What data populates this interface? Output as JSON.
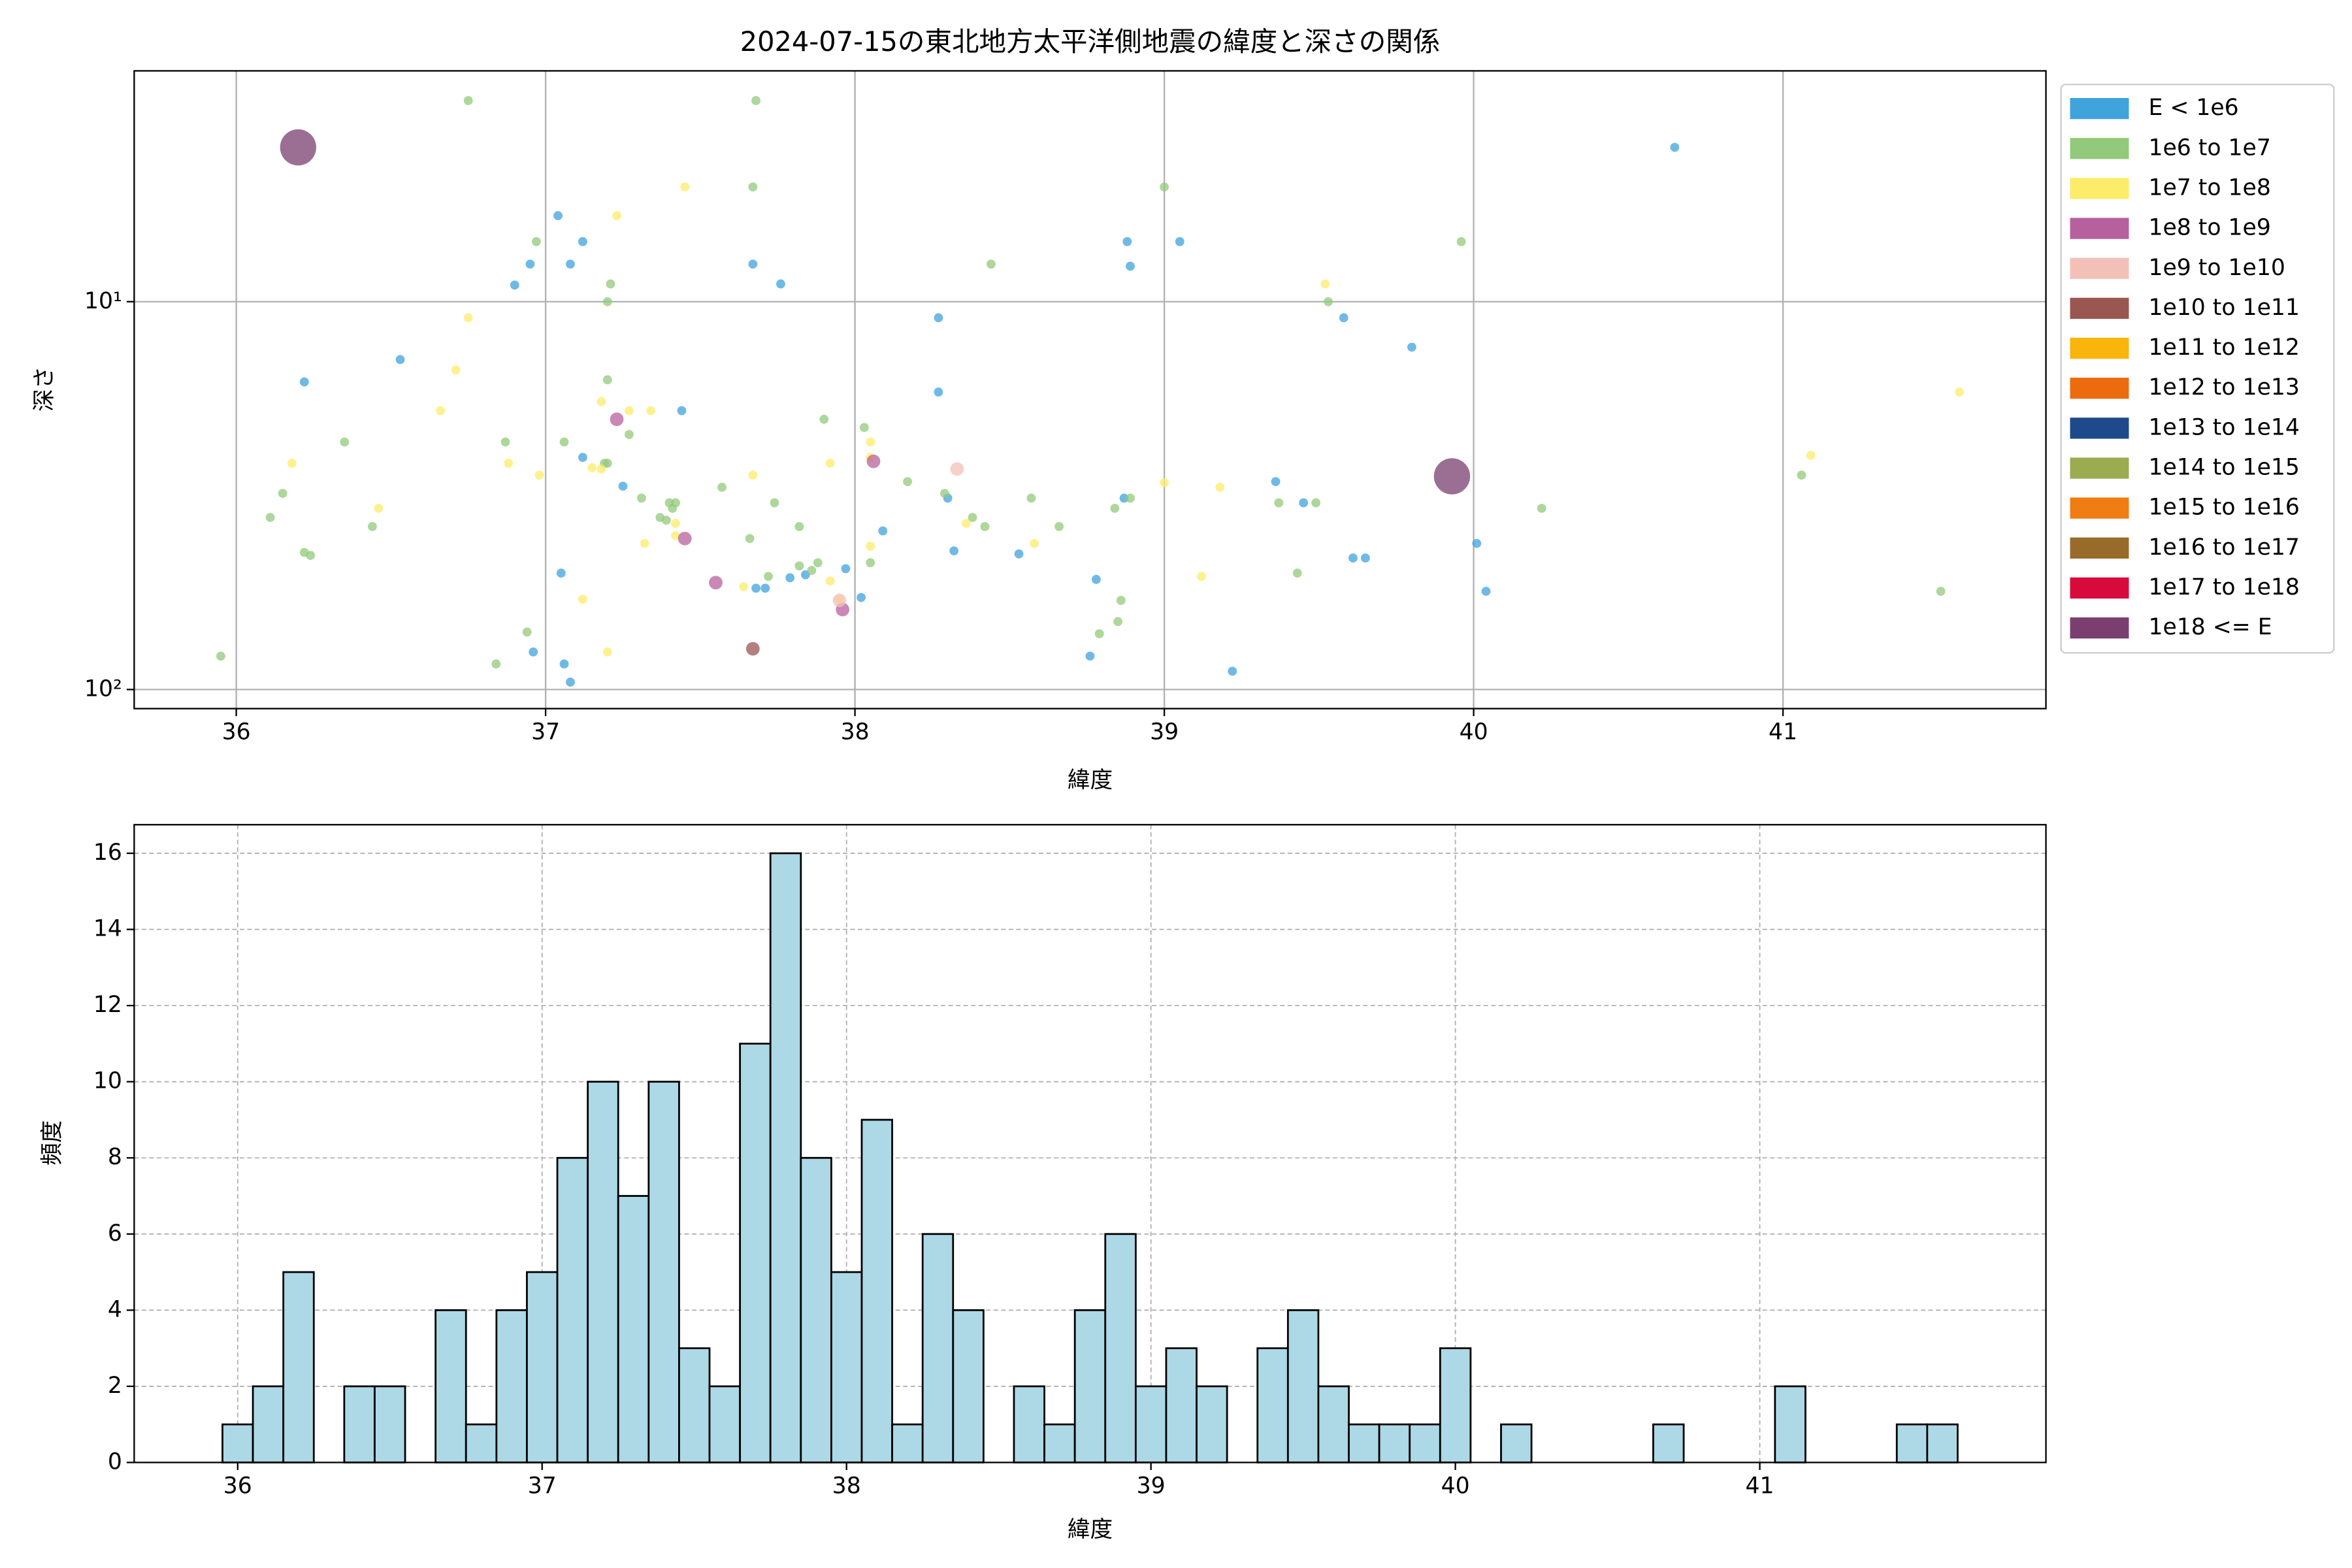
{
  "chart_data": [
    {
      "type": "scatter",
      "title": "2024-07-15の東北地方太平洋側地震の緯度と深さの関係",
      "x_label": "緯度",
      "y_label": "深さ",
      "xlim": [
        35.67,
        41.85
      ],
      "xticks": [
        36,
        37,
        38,
        39,
        40,
        41
      ],
      "ylim": [
        112,
        2.54
      ],
      "y_scale": "log",
      "yticks": [
        {
          "value": 10,
          "label": "10¹"
        },
        {
          "value": 100,
          "label": "10²"
        }
      ],
      "grid": true,
      "legend": "outside-right",
      "series": [
        {
          "name": "E < 1e6",
          "color": "#3fa3dc",
          "x": [
            36.22,
            36.53,
            36.9,
            36.95,
            37.04,
            37.08,
            37.12,
            37.12,
            37.25,
            37.44,
            37.05,
            36.96,
            37.06,
            37.08,
            37.67,
            37.76,
            37.68,
            37.71,
            37.79,
            37.84,
            37.97,
            38.02,
            38.09,
            38.27,
            38.27,
            38.3,
            38.32,
            38.53,
            38.78,
            38.76,
            38.87,
            38.88,
            38.89,
            39.05,
            39.22,
            39.36,
            39.45,
            39.58,
            39.61,
            39.65,
            39.8,
            40.01,
            40.04,
            40.65
          ],
          "y": [
            16.1,
            14.1,
            9.06,
            8,
            6,
            8,
            7,
            25.2,
            29.9,
            19.1,
            50.1,
            80,
            85.9,
            95.7,
            8,
            9,
            54.8,
            54.8,
            51.5,
            50.6,
            48.8,
            57.9,
            39,
            11,
            17.1,
            32.1,
            43.9,
            44.7,
            52,
            82,
            32.1,
            7,
            8.1,
            7,
            89.7,
            29.1,
            33,
            11,
            45.8,
            45.8,
            13.1,
            42,
            55.8,
            4
          ]
        },
        {
          "name": "1e6 to 1e7",
          "color": "#93c97a",
          "x": [
            36.75,
            37.68,
            37.67,
            39,
            36.97,
            37.21,
            37.2,
            38.44,
            39.96,
            39.53,
            37.2,
            36.87,
            37.06,
            37.19,
            37.2,
            37.27,
            36.35,
            36.15,
            36.11,
            36.22,
            36.24,
            36.44,
            37.31,
            37.4,
            37.42,
            37.37,
            37.41,
            37.39,
            37.57,
            37.74,
            37.9,
            38.03,
            38.17,
            38.29,
            38.38,
            38.42,
            38.57,
            38.66,
            38.84,
            38.89,
            39.37,
            39.49,
            39.43,
            38.05,
            37.66,
            37.72,
            37.82,
            37.82,
            37.86,
            37.88,
            35.95,
            36.84,
            36.94,
            38.79,
            38.85,
            38.86,
            41.06,
            40.22,
            41.51
          ],
          "y": [
            3.03,
            3.03,
            5.06,
            5.06,
            7,
            9,
            10,
            8,
            7,
            10,
            15.9,
            23,
            23,
            26.1,
            26.1,
            22,
            23,
            31.2,
            36,
            44.3,
            45.1,
            38,
            32.1,
            33,
            33,
            36,
            34.1,
            36.6,
            30.1,
            33,
            20.1,
            21.1,
            29.1,
            31.2,
            36,
            38,
            32.1,
            38,
            34.1,
            32.1,
            33,
            33,
            50.1,
            47.1,
            40.8,
            51.1,
            38,
            48,
            49.3,
            47.1,
            82,
            85.9,
            71.1,
            71.8,
            66.8,
            58.9,
            28,
            34.1,
            55.8
          ]
        },
        {
          "name": "1e7 to 1e8",
          "color": "#fcec6a",
          "x": [
            37.45,
            37.23,
            36.75,
            36.71,
            36.66,
            36.18,
            36.46,
            36.98,
            36.88,
            37.18,
            37.15,
            37.27,
            37.34,
            37.18,
            37.32,
            37.42,
            37.42,
            37.67,
            37.64,
            37.92,
            38.05,
            38.05,
            38.05,
            38.36,
            38.58,
            37.92,
            37.95,
            39,
            39.18,
            39.12,
            39.52,
            41.09,
            41.57,
            37.12,
            37.2
          ],
          "y": [
            5.06,
            6,
            11,
            15,
            19.1,
            26.1,
            34.1,
            28,
            26.1,
            18.1,
            26.8,
            19.1,
            19.1,
            27,
            42,
            40.1,
            37.3,
            28,
            54.3,
            26.1,
            23,
            25.2,
            42.7,
            37.3,
            42,
            52.5,
            58.5,
            29.3,
            30.1,
            51.1,
            9,
            24.9,
            17.1,
            58.5,
            80
          ]
        },
        {
          "name": "1e8 to 1e9",
          "color": "#b7609e",
          "x": [
            37.23,
            37.45,
            37.55,
            37.96,
            38.06
          ],
          "y": [
            20.1,
            40.8,
            53,
            62.2,
            25.8
          ]
        },
        {
          "name": "1e9 to 1e10",
          "color": "#f3c0b8",
          "x": [
            38.33,
            37.95
          ],
          "y": [
            27,
            58.9
          ]
        },
        {
          "name": "1e10 to 1e11",
          "color": "#9a5651",
          "x": [
            37.67
          ],
          "y": [
            78.5
          ]
        },
        {
          "name": "1e11 to 1e12",
          "color": "#f9b50c",
          "x": [],
          "y": []
        },
        {
          "name": "1e12 to 1e13",
          "color": "#ec6b0f",
          "x": [],
          "y": []
        },
        {
          "name": "1e13 to 1e14",
          "color": "#1e4a8c",
          "x": [],
          "y": []
        },
        {
          "name": "1e14 to 1e15",
          "color": "#9bab4f",
          "x": [],
          "y": []
        },
        {
          "name": "1e15 to 1e16",
          "color": "#ef7d11",
          "x": [],
          "y": []
        },
        {
          "name": "1e16 to 1e17",
          "color": "#986b2a",
          "x": [],
          "y": []
        },
        {
          "name": "1e17 to 1e18",
          "color": "#d80a3c",
          "x": [],
          "y": []
        },
        {
          "name": "1e18 <= E",
          "color": "#7a3f6f",
          "x": [
            36.2,
            39.93
          ],
          "y": [
            4,
            28.2
          ]
        }
      ]
    },
    {
      "type": "histogram",
      "x_label": "緯度",
      "y_label": "頻度",
      "color": "#add8e6",
      "edgecolor": "#000000",
      "xlim": [
        35.66,
        41.94
      ],
      "xticks": [
        36,
        37,
        38,
        39,
        40,
        41
      ],
      "ylim": [
        0,
        16.75
      ],
      "yticks": [
        0,
        2,
        4,
        6,
        8,
        10,
        12,
        14,
        16
      ],
      "grid": true,
      "bins": [
        35.95,
        36.05,
        36.15,
        36.25,
        36.35,
        36.45,
        36.55,
        36.65,
        36.75,
        36.85,
        36.95,
        37.05,
        37.15,
        37.25,
        37.35,
        37.45,
        37.55,
        37.65,
        37.75,
        37.85,
        37.95,
        38.05,
        38.15,
        38.25,
        38.35,
        38.45,
        38.55,
        38.65,
        38.75,
        38.85,
        38.95,
        39.05,
        39.15,
        39.25,
        39.35,
        39.45,
        39.55,
        39.65,
        39.75,
        39.85,
        39.95,
        40.05,
        40.15,
        40.25,
        40.35,
        40.45,
        40.55,
        40.65,
        40.75,
        40.85,
        40.95,
        41.05,
        41.15,
        41.25,
        41.35,
        41.45,
        41.55,
        41.65
      ],
      "counts": [
        1,
        2,
        5,
        0,
        2,
        2,
        0,
        4,
        1,
        4,
        5,
        8,
        10,
        7,
        10,
        3,
        2,
        11,
        16,
        8,
        5,
        9,
        1,
        6,
        4,
        0,
        2,
        1,
        4,
        6,
        2,
        3,
        2,
        0,
        3,
        4,
        2,
        1,
        1,
        1,
        3,
        0,
        1,
        0,
        0,
        0,
        0,
        1,
        0,
        0,
        0,
        2,
        0,
        0,
        0,
        1,
        1
      ]
    }
  ]
}
